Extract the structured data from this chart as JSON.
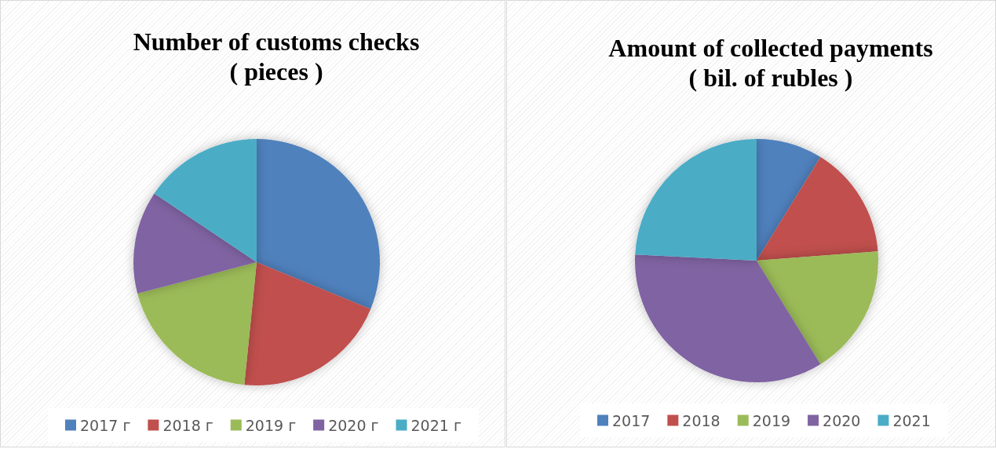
{
  "chart_data": [
    {
      "type": "pie",
      "title": "Number of customs checks\n( pieces )",
      "categories": [
        "2017 г",
        "2018 г",
        "2019 г",
        "2020 г",
        "2021 г"
      ],
      "values": [
        31.2,
        20.4,
        19.3,
        13.5,
        15.6
      ],
      "colors": [
        "#4f81bd",
        "#c0504d",
        "#9bbb59",
        "#8064a2",
        "#4bacc6"
      ],
      "legend": "bottom"
    },
    {
      "type": "pie",
      "title": "Amount of collected payments\n( bil. of rubles )",
      "categories": [
        "2017",
        "2018",
        "2019",
        "2020",
        "2021"
      ],
      "values": [
        8.8,
        15.0,
        17.4,
        34.6,
        24.2
      ],
      "colors": [
        "#4f81bd",
        "#c0504d",
        "#9bbb59",
        "#8064a2",
        "#4bacc6"
      ],
      "legend": "bottom"
    }
  ]
}
